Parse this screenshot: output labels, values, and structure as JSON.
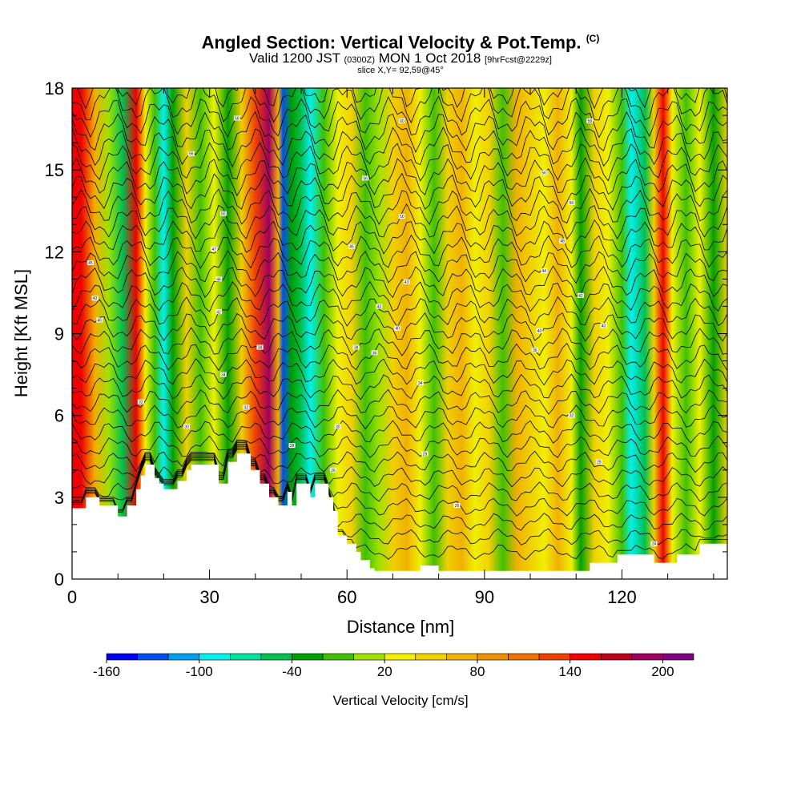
{
  "chart_data": {
    "type": "heatmap",
    "title": "Angled Section: Vertical Velocity & Pot.Temp.",
    "title_unit": "(C)",
    "subtitle_main_a": "Valid 1200 JST",
    "subtitle_small_a": "(0300Z)",
    "subtitle_main_b": "MON 1 Oct 2018",
    "subtitle_small_b": "[9hrFcst@2229z]",
    "slice_label": "slice X,Y= 92,59@45°",
    "xlabel": "Distance [nm]",
    "ylabel": "Height [Kft MSL]",
    "xlim": [
      0,
      143
    ],
    "ylim": [
      0,
      18
    ],
    "x_ticks": [
      0,
      30,
      60,
      90,
      120
    ],
    "x_tick_labels": [
      "0",
      "30",
      "60",
      "90",
      "120"
    ],
    "y_ticks": [
      0,
      3,
      6,
      9,
      12,
      15,
      18
    ],
    "y_tick_labels": [
      "0",
      "3",
      "6",
      "9",
      "12",
      "15",
      "18"
    ],
    "colorbar": {
      "title": "Vertical Velocity [cm/s]",
      "levels": [
        -160,
        -140,
        -120,
        -100,
        -80,
        -60,
        -40,
        -20,
        0,
        20,
        40,
        60,
        80,
        100,
        120,
        140,
        160,
        180,
        200,
        220
      ],
      "tick_labels": [
        "-160",
        "-100",
        "-40",
        "20",
        "80",
        "140",
        "200"
      ],
      "tick_values": [
        -160,
        -100,
        -40,
        20,
        80,
        140,
        200
      ],
      "colors": [
        "#0000f0",
        "#0050f0",
        "#00a0f0",
        "#00f0f0",
        "#00e0a0",
        "#00c050",
        "#00a000",
        "#40c000",
        "#a0e000",
        "#f0f000",
        "#f0d000",
        "#f0b000",
        "#f09000",
        "#f07000",
        "#f04000",
        "#f00000",
        "#c00020",
        "#a00060",
        "#800080"
      ]
    },
    "velocity_columns": [
      {
        "x": 2,
        "w": 140
      },
      {
        "x": 5,
        "w": 60
      },
      {
        "x": 8,
        "w": 10
      },
      {
        "x": 11,
        "w": -60
      },
      {
        "x": 14,
        "w": 140
      },
      {
        "x": 16,
        "w": 30
      },
      {
        "x": 18,
        "w": -20
      },
      {
        "x": 20,
        "w": -100
      },
      {
        "x": 22,
        "w": -40
      },
      {
        "x": 25,
        "w": 40
      },
      {
        "x": 28,
        "w": -20
      },
      {
        "x": 31,
        "w": 20
      },
      {
        "x": 34,
        "w": -40
      },
      {
        "x": 37,
        "w": 40
      },
      {
        "x": 40,
        "w": 120
      },
      {
        "x": 43,
        "w": 180
      },
      {
        "x": 45,
        "w": 60
      },
      {
        "x": 46,
        "w": -140
      },
      {
        "x": 48,
        "w": -40
      },
      {
        "x": 50,
        "w": -60
      },
      {
        "x": 52,
        "w": -100
      },
      {
        "x": 55,
        "w": -20
      },
      {
        "x": 58,
        "w": 20
      },
      {
        "x": 61,
        "w": 40
      },
      {
        "x": 64,
        "w": -20
      },
      {
        "x": 67,
        "w": 0
      },
      {
        "x": 70,
        "w": 40
      },
      {
        "x": 73,
        "w": 60
      },
      {
        "x": 76,
        "w": 20
      },
      {
        "x": 79,
        "w": -20
      },
      {
        "x": 82,
        "w": 40
      },
      {
        "x": 85,
        "w": 60
      },
      {
        "x": 88,
        "w": 20
      },
      {
        "x": 91,
        "w": 40
      },
      {
        "x": 94,
        "w": -20
      },
      {
        "x": 97,
        "w": 60
      },
      {
        "x": 100,
        "w": 40
      },
      {
        "x": 103,
        "w": 20
      },
      {
        "x": 106,
        "w": 60
      },
      {
        "x": 109,
        "w": 20
      },
      {
        "x": 111,
        "w": -40
      },
      {
        "x": 114,
        "w": 40
      },
      {
        "x": 117,
        "w": 20
      },
      {
        "x": 120,
        "w": -20
      },
      {
        "x": 122,
        "w": -100
      },
      {
        "x": 125,
        "w": -60
      },
      {
        "x": 127,
        "w": 40
      },
      {
        "x": 129,
        "w": 140
      },
      {
        "x": 131,
        "w": 20
      },
      {
        "x": 134,
        "w": -20
      },
      {
        "x": 137,
        "w": 20
      },
      {
        "x": 140,
        "w": -40
      },
      {
        "x": 143,
        "w": 40
      }
    ],
    "terrain": [
      [
        0,
        2.6
      ],
      [
        3,
        2.6
      ],
      [
        3,
        3.0
      ],
      [
        6,
        3.0
      ],
      [
        6,
        2.7
      ],
      [
        10,
        2.7
      ],
      [
        10,
        2.3
      ],
      [
        12,
        2.3
      ],
      [
        12,
        2.7
      ],
      [
        14,
        2.7
      ],
      [
        14,
        3.3
      ],
      [
        15,
        3.3
      ],
      [
        15,
        3.8
      ],
      [
        16,
        3.8
      ],
      [
        16,
        4.2
      ],
      [
        18,
        4.2
      ],
      [
        18,
        3.7
      ],
      [
        19,
        3.7
      ],
      [
        19,
        3.5
      ],
      [
        20,
        3.5
      ],
      [
        20,
        3.3
      ],
      [
        23,
        3.3
      ],
      [
        23,
        3.6
      ],
      [
        25,
        3.6
      ],
      [
        25,
        4.0
      ],
      [
        26,
        4.0
      ],
      [
        26,
        4.2
      ],
      [
        32,
        4.2
      ],
      [
        32,
        3.5
      ],
      [
        34,
        3.5
      ],
      [
        34,
        4.3
      ],
      [
        36,
        4.3
      ],
      [
        36,
        4.6
      ],
      [
        39,
        4.6
      ],
      [
        39,
        4.0
      ],
      [
        41,
        4.0
      ],
      [
        41,
        3.5
      ],
      [
        43,
        3.5
      ],
      [
        43,
        3.0
      ],
      [
        45,
        3.0
      ],
      [
        45,
        2.7
      ],
      [
        47,
        2.7
      ],
      [
        47,
        3.2
      ],
      [
        48,
        3.2
      ],
      [
        48,
        2.7
      ],
      [
        49,
        2.7
      ],
      [
        49,
        3.5
      ],
      [
        52,
        3.5
      ],
      [
        52,
        3.0
      ],
      [
        53,
        3.0
      ],
      [
        53,
        3.5
      ],
      [
        56,
        3.5
      ],
      [
        56,
        3.0
      ],
      [
        57,
        3.0
      ],
      [
        57,
        2.5
      ],
      [
        58,
        2.5
      ],
      [
        58,
        1.6
      ],
      [
        60,
        1.6
      ],
      [
        60,
        1.3
      ],
      [
        62,
        1.3
      ],
      [
        62,
        1.0
      ],
      [
        63,
        1.0
      ],
      [
        63,
        0.7
      ],
      [
        65,
        0.7
      ],
      [
        65,
        0.4
      ],
      [
        66,
        0.4
      ],
      [
        66,
        0.3
      ],
      [
        76,
        0.3
      ],
      [
        76,
        0.5
      ],
      [
        80,
        0.5
      ],
      [
        80,
        0.3
      ],
      [
        113,
        0.3
      ],
      [
        113,
        0.6
      ],
      [
        119,
        0.6
      ],
      [
        119,
        0.9
      ],
      [
        127,
        0.9
      ],
      [
        127,
        0.6
      ],
      [
        132,
        0.6
      ],
      [
        132,
        0.9
      ],
      [
        137,
        0.9
      ],
      [
        137,
        1.3
      ],
      [
        143,
        1.3
      ]
    ],
    "isentropes": {
      "count": 32,
      "base_spacing_kft": 0.55
    },
    "contour_labels": [
      {
        "x": 36,
        "y": 16.9,
        "text": "58"
      },
      {
        "x": 72,
        "y": 16.8,
        "text": "60"
      },
      {
        "x": 113,
        "y": 16.8,
        "text": "58"
      },
      {
        "x": 26,
        "y": 15.6,
        "text": "56"
      },
      {
        "x": 64,
        "y": 14.7,
        "text": "56"
      },
      {
        "x": 103,
        "y": 14.9,
        "text": "56"
      },
      {
        "x": 33,
        "y": 13.4,
        "text": "50"
      },
      {
        "x": 72,
        "y": 13.3,
        "text": "50"
      },
      {
        "x": 109,
        "y": 13.8,
        "text": "50"
      },
      {
        "x": 31,
        "y": 12.1,
        "text": "47"
      },
      {
        "x": 61,
        "y": 12.2,
        "text": "46"
      },
      {
        "x": 107,
        "y": 12.4,
        "text": "48"
      },
      {
        "x": 4,
        "y": 11.6,
        "text": "45"
      },
      {
        "x": 32,
        "y": 11.0,
        "text": "44"
      },
      {
        "x": 73,
        "y": 10.9,
        "text": "43"
      },
      {
        "x": 103,
        "y": 11.3,
        "text": "44"
      },
      {
        "x": 5,
        "y": 10.3,
        "text": "43"
      },
      {
        "x": 32,
        "y": 9.8,
        "text": "42"
      },
      {
        "x": 67,
        "y": 10.0,
        "text": "43"
      },
      {
        "x": 111,
        "y": 10.4,
        "text": "42"
      },
      {
        "x": 6,
        "y": 9.5,
        "text": "40"
      },
      {
        "x": 71,
        "y": 9.2,
        "text": "40"
      },
      {
        "x": 102,
        "y": 9.1,
        "text": "40"
      },
      {
        "x": 116,
        "y": 9.3,
        "text": "40"
      },
      {
        "x": 41,
        "y": 8.5,
        "text": "38"
      },
      {
        "x": 62,
        "y": 8.5,
        "text": "38"
      },
      {
        "x": 66,
        "y": 8.3,
        "text": "36"
      },
      {
        "x": 101,
        "y": 8.4,
        "text": "36"
      },
      {
        "x": 33,
        "y": 7.5,
        "text": "34"
      },
      {
        "x": 76,
        "y": 7.2,
        "text": "34"
      },
      {
        "x": 38,
        "y": 6.3,
        "text": "32"
      },
      {
        "x": 15,
        "y": 6.5,
        "text": "32"
      },
      {
        "x": 109,
        "y": 6.0,
        "text": "32"
      },
      {
        "x": 25,
        "y": 5.6,
        "text": "30"
      },
      {
        "x": 58,
        "y": 5.6,
        "text": "30"
      },
      {
        "x": 48,
        "y": 4.9,
        "text": "28"
      },
      {
        "x": 77,
        "y": 4.6,
        "text": "28"
      },
      {
        "x": 115,
        "y": 4.3,
        "text": "28"
      },
      {
        "x": 57,
        "y": 4.0,
        "text": "26"
      },
      {
        "x": 84,
        "y": 2.7,
        "text": "26"
      },
      {
        "x": 127,
        "y": 1.3,
        "text": "24"
      }
    ]
  }
}
